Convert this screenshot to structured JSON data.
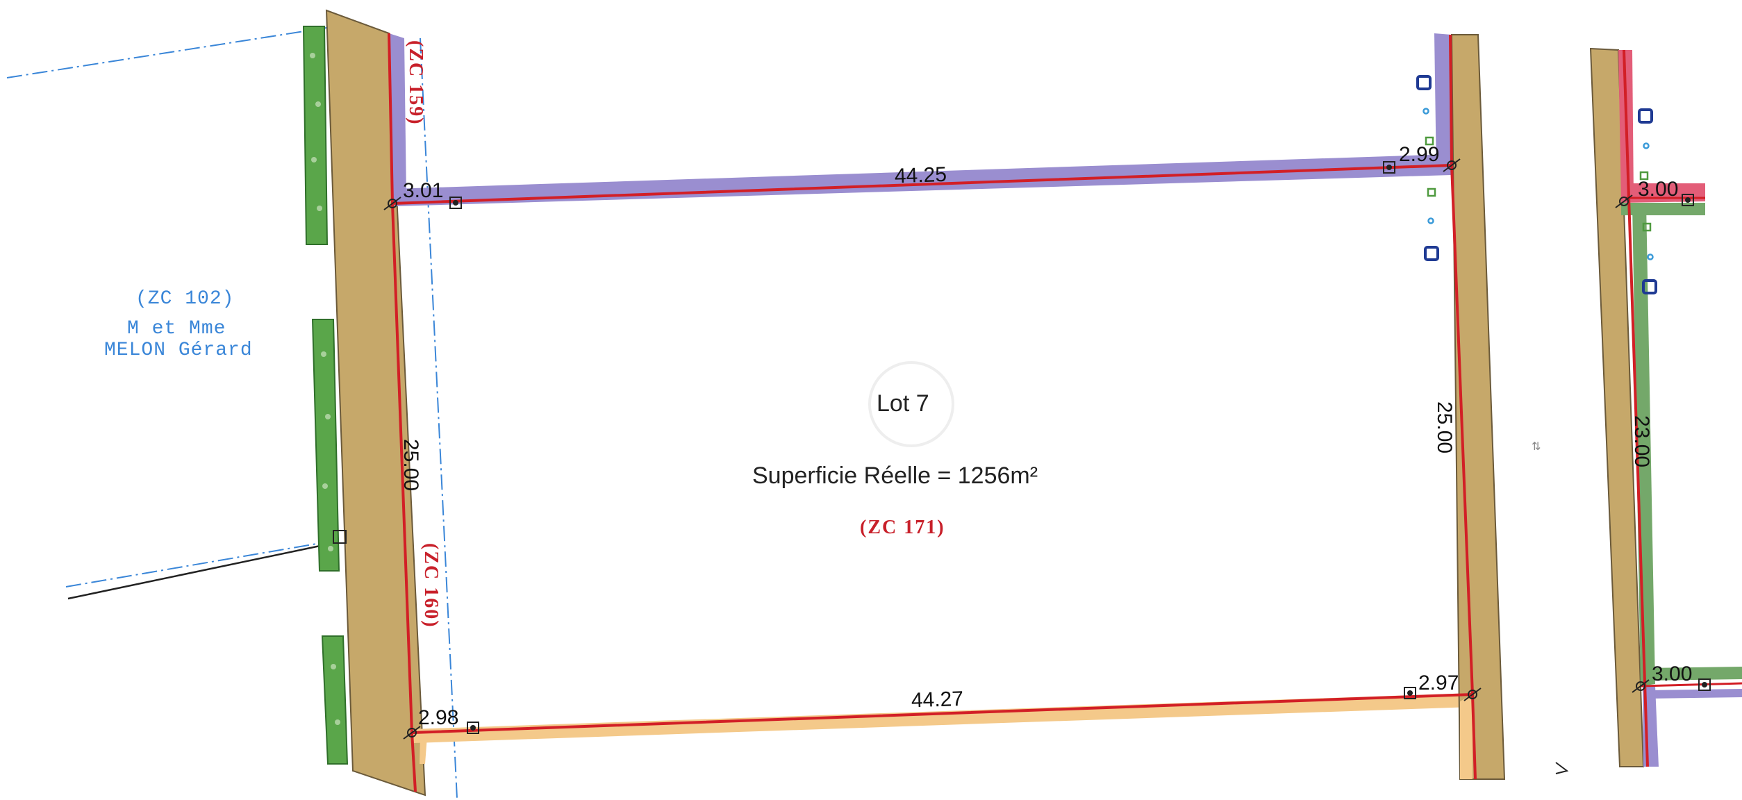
{
  "colors": {
    "road": "#c6a86a",
    "boundary": "#d21f26",
    "neighbor_purple": "#9a8ed0",
    "neighbor_orange": "#f4c98a",
    "neighbor_pink": "#e35d78",
    "neighbor_green": "#74a86a",
    "hedge": "#4f9a3f",
    "blue_line": "#3a86d8",
    "network_blue": "#1f3a93"
  },
  "lot": {
    "title": "Lot 7",
    "surface": "Superficie Réelle = 1256m²",
    "parcel_ref": "(ZC 171)"
  },
  "dimensions": {
    "top": "44.25",
    "bottom": "44.27",
    "left": "25.00",
    "right": "25.00",
    "corner_top_left": "3.01",
    "corner_top_right": "2.99",
    "corner_bottom_left": "2.98",
    "corner_bottom_right": "2.97",
    "neighbor_top": "3.00",
    "neighbor_side": "23.00",
    "neighbor_bottom": "3.00"
  },
  "neighbors": {
    "top_parcel": "(ZC 159)",
    "left_parcel": "(ZC 160)",
    "owner_parcel": "(ZC 102)",
    "owner_line1": "M et Mme",
    "owner_line2": "MELON Gérard"
  },
  "icons": [
    "survey-marker-icon",
    "boundary-stone-icon",
    "water-meter-icon",
    "telecom-chamber-icon"
  ]
}
